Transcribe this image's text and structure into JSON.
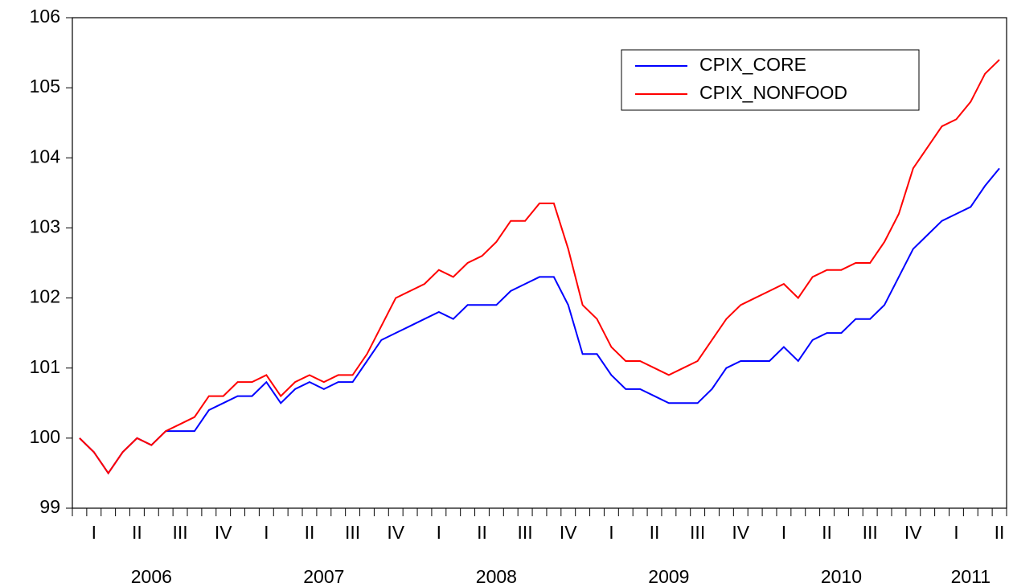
{
  "chart_data": {
    "type": "line",
    "categories": [
      null,
      "I",
      null,
      null,
      "II",
      null,
      null,
      "III",
      null,
      null,
      "IV",
      null,
      null,
      "I",
      null,
      null,
      "II",
      null,
      null,
      "III",
      null,
      null,
      "IV",
      null,
      null,
      "I",
      null,
      null,
      "II",
      null,
      null,
      "III",
      null,
      null,
      "IV",
      null,
      null,
      "I",
      null,
      null,
      "II",
      null,
      null,
      "III",
      null,
      null,
      "IV",
      null,
      null,
      "I",
      null,
      null,
      "II",
      null,
      null,
      "III",
      null,
      null,
      "IV",
      null,
      null,
      "I",
      null,
      null,
      "II"
    ],
    "years": [
      null,
      null,
      null,
      null,
      null,
      "2006",
      null,
      null,
      null,
      null,
      null,
      null,
      null,
      null,
      null,
      null,
      null,
      "2007",
      null,
      null,
      null,
      null,
      null,
      null,
      null,
      null,
      null,
      null,
      null,
      "2008",
      null,
      null,
      null,
      null,
      null,
      null,
      null,
      null,
      null,
      null,
      null,
      "2009",
      null,
      null,
      null,
      null,
      null,
      null,
      null,
      null,
      null,
      null,
      null,
      "2010",
      null,
      null,
      null,
      null,
      null,
      null,
      null,
      null,
      "2011",
      null,
      null
    ],
    "series": [
      {
        "name": "CPIX_CORE",
        "color": "#0000ff",
        "values": [
          100,
          99.8,
          99.5,
          99.8,
          100,
          99.9,
          100.1,
          100.1,
          100.1,
          100.4,
          100.5,
          100.6,
          100.6,
          100.8,
          100.5,
          100.7,
          100.8,
          100.7,
          100.8,
          100.8,
          101.1,
          101.4,
          101.5,
          101.6,
          101.7,
          101.8,
          101.7,
          101.9,
          101.9,
          101.9,
          102.1,
          102.2,
          102.3,
          102.3,
          101.9,
          101.2,
          101.2,
          100.9,
          100.7,
          100.7,
          100.6,
          100.5,
          100.5,
          100.5,
          100.7,
          101.0,
          101.1,
          101.1,
          101.1,
          101.3,
          101.1,
          101.4,
          101.5,
          101.5,
          101.7,
          101.7,
          101.9,
          102.3,
          102.7,
          102.9,
          103.1,
          103.2,
          103.3,
          103.6,
          103.85
        ]
      },
      {
        "name": "CPIX_NONFOOD",
        "color": "#ff0000",
        "values": [
          100,
          99.8,
          99.5,
          99.8,
          100,
          99.9,
          100.1,
          100.2,
          100.3,
          100.6,
          100.6,
          100.8,
          100.8,
          100.9,
          100.6,
          100.8,
          100.9,
          100.8,
          100.9,
          100.9,
          101.2,
          101.6,
          102.0,
          102.1,
          102.2,
          102.4,
          102.3,
          102.5,
          102.6,
          102.8,
          103.1,
          103.1,
          103.35,
          103.35,
          102.7,
          101.9,
          101.7,
          101.3,
          101.1,
          101.1,
          101.0,
          100.9,
          101.0,
          101.1,
          101.4,
          101.7,
          101.9,
          102.0,
          102.1,
          102.2,
          102.0,
          102.3,
          102.4,
          102.4,
          102.5,
          102.5,
          102.8,
          103.2,
          103.85,
          104.15,
          104.45,
          104.55,
          104.8,
          105.2,
          105.4
        ]
      }
    ],
    "ylim": [
      99,
      106
    ],
    "yticks": [
      99,
      100,
      101,
      102,
      103,
      104,
      105,
      106
    ],
    "grid": false,
    "legend": "top-right"
  }
}
